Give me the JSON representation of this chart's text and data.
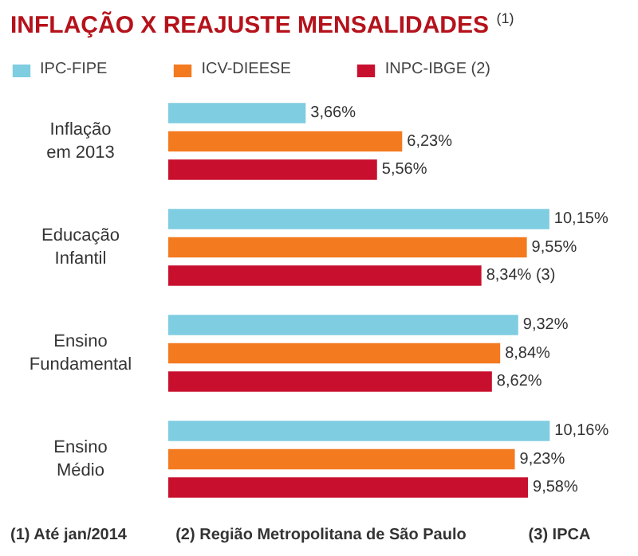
{
  "chart_data": {
    "type": "bar",
    "orientation": "horizontal",
    "title": "INFLAÇÃO X REAJUSTE MENSALIDADES $^{(1)}$",
    "categories": [
      "Inflação\nem 2013",
      "Educação\nInfantil",
      "Ensino\nFundamental",
      "Ensino\nMédio"
    ],
    "series": [
      {
        "name": "IPC-FIPE",
        "color": "#7fcde0",
        "values": [
          3.66,
          10.15,
          9.32,
          10.16
        ],
        "value_labels": [
          "3,66%",
          "10,15%",
          "9,32%",
          "10,16%"
        ]
      },
      {
        "name": "ICV-DIEESE",
        "color": "#f47a20",
        "values": [
          6.23,
          9.55,
          8.84,
          9.23
        ],
        "value_labels": [
          "6,23%",
          "9,55%",
          "8,84%",
          "9,23%"
        ]
      },
      {
        "name": "INPC-IBGE (2)",
        "color": "#c8102e",
        "values": [
          5.56,
          8.34,
          8.62,
          9.58
        ],
        "value_labels": [
          "5,56%",
          "8,34% (3)",
          "8,62%",
          "9,58%"
        ]
      }
    ],
    "legend": "top",
    "annotations": [
      "(1) Até jan/2014",
      "(2) Região Metropolitana de São Paulo",
      "(3) IPCA"
    ]
  }
}
